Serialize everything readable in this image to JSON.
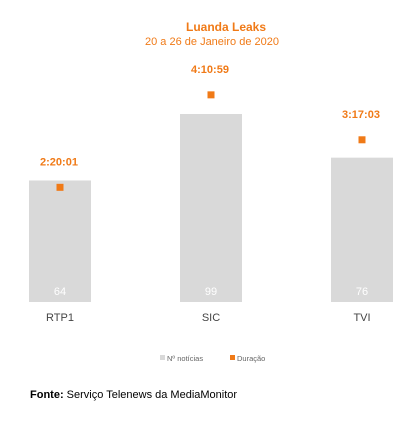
{
  "chart_data": {
    "type": "bar",
    "title": "Luanda Leaks",
    "subtitle": "20 a 26 de Janeiro de 2020",
    "categories": [
      "RTP1",
      "SIC",
      "TVI"
    ],
    "series": [
      {
        "name": "Nº notícias",
        "values": [
          64,
          99,
          76
        ],
        "color": "#d9d9d9"
      },
      {
        "name": "Duração",
        "values": [
          "2:20:01",
          "4:10:59",
          "3:17:03"
        ],
        "color": "#f07a17",
        "marker": "square"
      }
    ],
    "legend": "bottom",
    "grid": false
  },
  "colors": {
    "accent": "#f07a17",
    "bar": "#d9d9d9",
    "bar_label": "#ffffff",
    "axis_text": "#444444"
  },
  "source": {
    "label": "Fonte:",
    "text": "Serviço Telenews da MediaMonitor"
  }
}
